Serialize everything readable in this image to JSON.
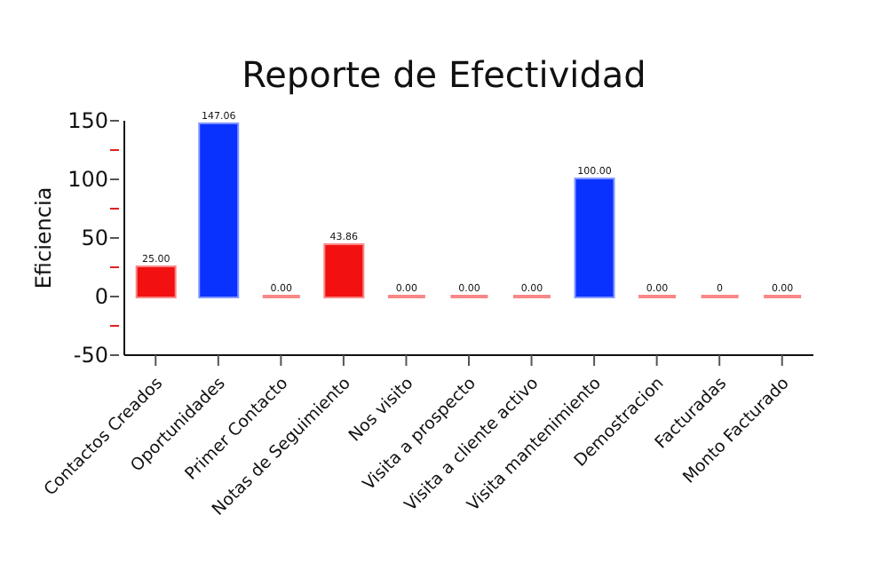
{
  "chart_data": {
    "type": "bar",
    "title": "Reporte de Efectividad",
    "ylabel": "Eficiencia",
    "categories": [
      "Contactos Creados",
      "Oportunidades",
      "Primer Contacto",
      "Notas de Seguimiento",
      "Nos visito",
      "Visita a prospecto",
      "Visita a cliente activo",
      "Visita mantenimiento",
      "Demostracion",
      "Facturadas",
      "Monto Facturado"
    ],
    "values": [
      25,
      147.06,
      0,
      43.86,
      0,
      0,
      0,
      100,
      0,
      0,
      0
    ],
    "value_labels": [
      "25.00",
      "147.06",
      "0.00",
      "43.86",
      "0.00",
      "0.00",
      "0.00",
      "100.00",
      "0.00",
      "0",
      "0.00"
    ],
    "colors": [
      "#f21010",
      "#0a32ff",
      "#f21010",
      "#f21010",
      "#f21010",
      "#f21010",
      "#f21010",
      "#0a32ff",
      "#f21010",
      "#f21010",
      "#f21010"
    ],
    "ylim": [
      -50,
      150
    ],
    "yticks": [
      -50,
      {
        "value": -25,
        "label": null
      },
      0,
      {
        "value": 25,
        "label": null
      },
      50,
      {
        "value": 75,
        "label": null
      },
      100,
      {
        "value": 125,
        "label": null
      },
      150
    ]
  }
}
